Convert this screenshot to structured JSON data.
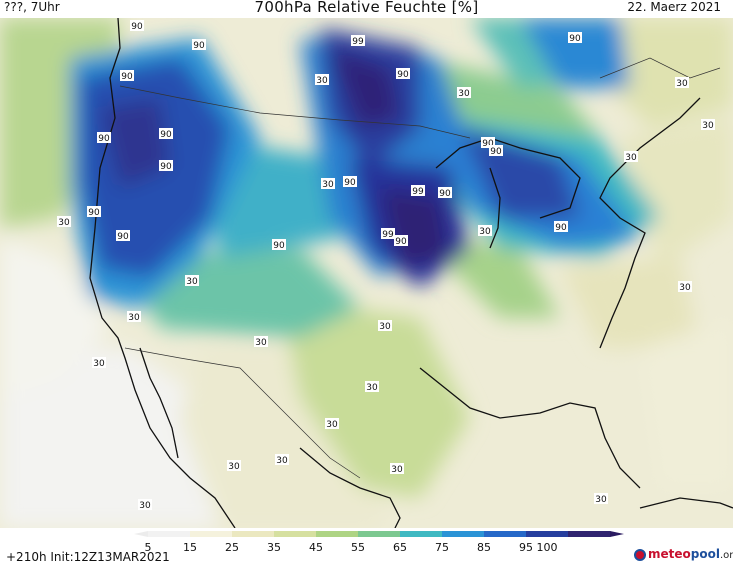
{
  "header": {
    "left": "???, 7Uhr",
    "title": "700hPa Relative Feuchte [%]",
    "right": "22. Maerz 2021"
  },
  "map": {
    "labels": [
      {
        "text": "90"
      },
      {
        "text": "90"
      },
      {
        "text": "99"
      },
      {
        "text": "90"
      },
      {
        "text": "90"
      },
      {
        "text": "30"
      },
      {
        "text": "90"
      },
      {
        "text": "30"
      },
      {
        "text": "30"
      },
      {
        "text": "90"
      },
      {
        "text": "90"
      },
      {
        "text": "90"
      },
      {
        "text": "30"
      },
      {
        "text": "90"
      },
      {
        "text": "30"
      },
      {
        "text": "90"
      },
      {
        "text": "99"
      },
      {
        "text": "90"
      },
      {
        "text": "90"
      },
      {
        "text": "90"
      },
      {
        "text": "90"
      },
      {
        "text": "30"
      },
      {
        "text": "90"
      },
      {
        "text": "99"
      },
      {
        "text": "90"
      },
      {
        "text": "30"
      },
      {
        "text": "90"
      },
      {
        "text": "30"
      },
      {
        "text": "30"
      },
      {
        "text": "30"
      },
      {
        "text": "30"
      },
      {
        "text": "30"
      },
      {
        "text": "30"
      },
      {
        "text": "30"
      },
      {
        "text": "30"
      },
      {
        "text": "30"
      },
      {
        "text": "30"
      },
      {
        "text": "30"
      },
      {
        "text": "30"
      },
      {
        "text": "30"
      },
      {
        "text": "30"
      }
    ]
  },
  "colorbar": {
    "ticks": [
      "5",
      "15",
      "25",
      "35",
      "45",
      "55",
      "65",
      "75",
      "85",
      "95",
      "100"
    ],
    "colors": [
      "#f2f2f2",
      "#f5f2dd",
      "#ebe8c0",
      "#d6e0a0",
      "#aed484",
      "#7cc890",
      "#3fb9c2",
      "#2a93d6",
      "#2668c8",
      "#263e9e",
      "#302470"
    ]
  },
  "footer": {
    "run_info": "+210h  Init:12Z13MAR2021",
    "brand_meteo": "meteo",
    "brand_pool": "pool",
    "brand_org": ".org"
  }
}
